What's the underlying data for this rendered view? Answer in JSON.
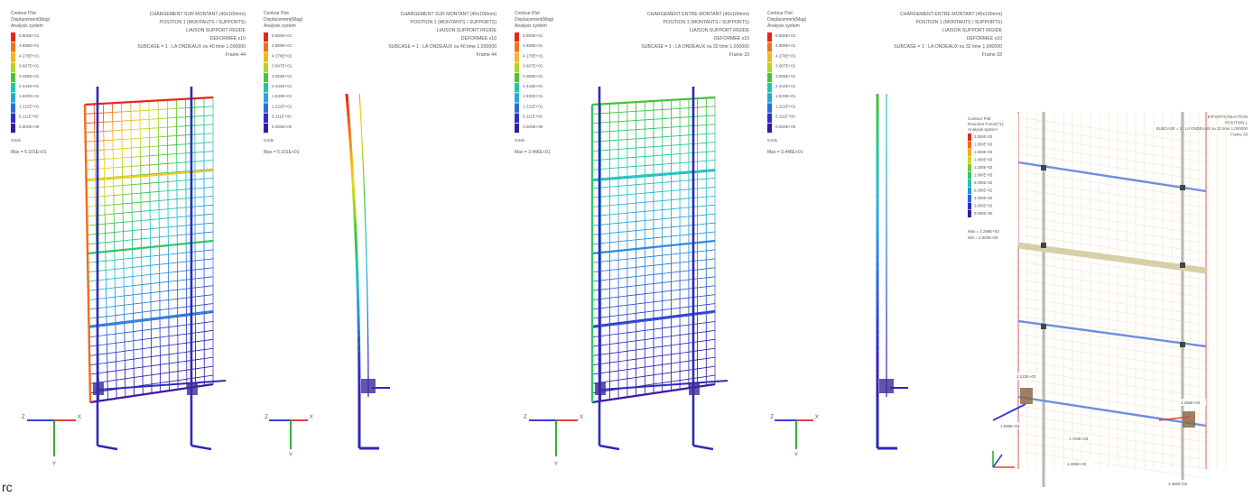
{
  "contour": {
    "plot_title": "Contour Plot",
    "quantity": "Displacement(Mag)",
    "system": "Analysis system",
    "grid_row_label": "Grids",
    "colors": [
      "#e8261b",
      "#f2641a",
      "#f7a21b",
      "#e9d61b",
      "#9bd41f",
      "#3fc237",
      "#1fc9a0",
      "#27b5d9",
      "#2a8ae0",
      "#2c55d6",
      "#2b27c9",
      "#3a18a6"
    ]
  },
  "panels": [
    {
      "title_lines": [
        "CHARGEMENT SUR MONTANT (40x100mm)",
        "POSITION 1 (MONTANTS / SUPPORTS)",
        "LIAISON SUPPORT RIGIDE",
        "DEFORMEE x10",
        "SUBCASE = 1 : LA ONDEAUX ou 40 time 1.000000",
        "Frame 44"
      ],
      "legend_values": [
        "5.500E+01",
        "4.889E+01",
        "4.278E+01",
        "3.667E+01",
        "3.056E+01",
        "2.444E+01",
        "1.833E+01",
        "1.222E+01",
        "6.111E+00",
        "0.000E+00"
      ],
      "max_label": "Max = 5.101E+01"
    },
    {
      "title_lines": [
        "CHARGEMENT SUR MONTANT (40x100mm)",
        "POSITION 1 (MONTANTS / SUPPORTS)",
        "LIAISON SUPPORT RIGIDE",
        "DEFORMEE x10",
        "SUBCASE = 1 : LA ONDEAUX ou 40 time 1.000000",
        "Frame 44"
      ],
      "legend_values": [
        "5.500E+01",
        "4.889E+01",
        "4.278E+01",
        "3.667E+01",
        "3.056E+01",
        "2.444E+01",
        "1.833E+01",
        "1.222E+01",
        "6.111E+00",
        "0.000E+00"
      ],
      "max_label": "Max = 5.101E+01"
    },
    {
      "title_lines": [
        "CHARGEMENT ENTRE MONTANT (40x100mm)",
        "POSITION 1 (MONTANTS / SUPPORTS)",
        "LIAISON SUPPORT RIGIDE",
        "DEFORMEE x10",
        "SUBCASE = 1 : LA ONDEAUX ou 32 time 1.000000",
        "Frame 33"
      ],
      "legend_values": [
        "5.500E+01",
        "4.889E+01",
        "4.278E+01",
        "3.667E+01",
        "3.056E+01",
        "2.444E+01",
        "1.833E+01",
        "1.222E+01",
        "6.111E+00",
        "0.000E+00"
      ],
      "max_label": "Max = 3.446E+01"
    },
    {
      "title_lines": [
        "CHARGEMENT ENTRE MONTANT (40x100mm)",
        "POSITION 1 (MONTANTS / SUPPORTS)",
        "LIAISON SUPPORT RIGIDE",
        "DEFORMEE x10",
        "SUBCASE = 1 : LA ONDEAUX ou 32 time 1.000000",
        "Frame 33"
      ],
      "legend_values": [
        "5.500E+01",
        "4.889E+01",
        "4.278E+01",
        "3.667E+01",
        "3.056E+01",
        "2.444E+01",
        "1.833E+01",
        "1.222E+01",
        "6.111E+00",
        "0.000E+00"
      ],
      "max_label": "Max = 3.446E+01"
    }
  ],
  "reaction_panel": {
    "plot_title": "Contour Plot",
    "quantity": "Reaction Force(T1)",
    "system": "Analysis system",
    "legend_values": [
      "2.000E+03",
      "1.800E+03",
      "1.600E+03",
      "1.400E+03",
      "1.200E+03",
      "1.000E+03",
      "8.000E+02",
      "6.000E+02",
      "4.000E+02",
      "2.000E+02",
      "0.000E+00"
    ],
    "max_label": "Max = 2.296E+03",
    "min_label": "Min = 2.000E+00",
    "title_lines": [
      "EFFORTS REACTION",
      "POSITION 1",
      "SUBCASE = 1 : LA ONDEAUX ou 32 time 1.000000",
      "Frame 33"
    ],
    "annotations": [
      "1.123E+03",
      "2.296E+03",
      "1.734E+03",
      "1.958E+03",
      "3.482E+02",
      "1.286E+03"
    ]
  },
  "axes": {
    "x": "X",
    "y": "Y",
    "z": "Z"
  },
  "corner_text": "rc"
}
